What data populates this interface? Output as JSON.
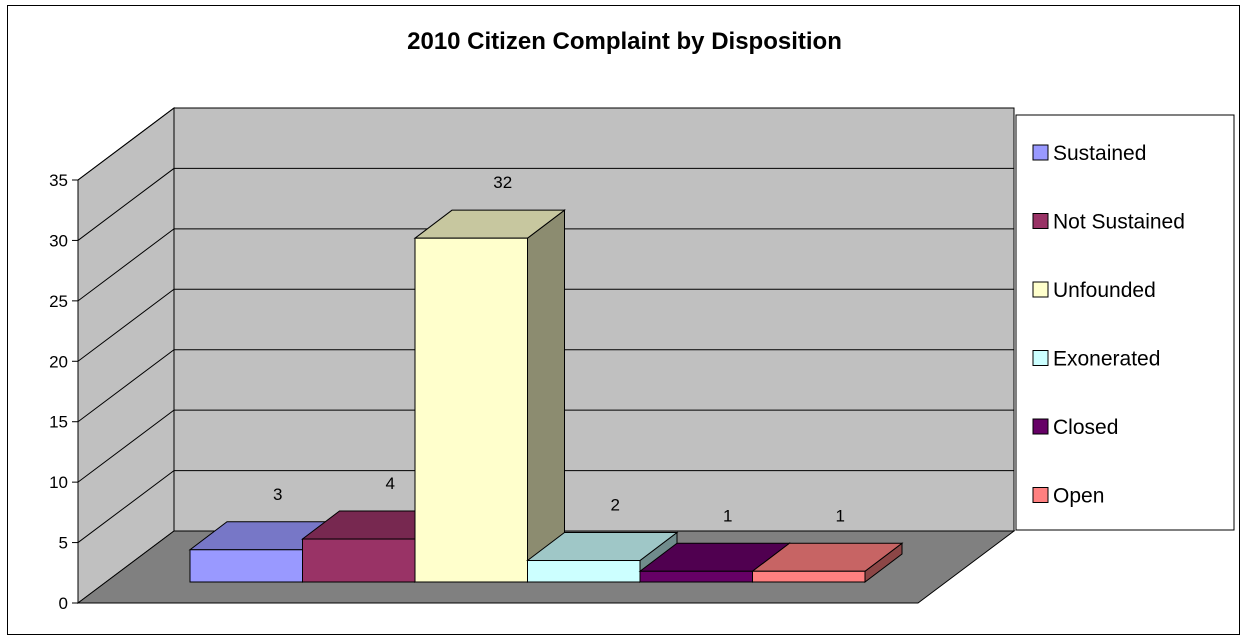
{
  "chart_data": {
    "type": "bar",
    "title": "2010 Citizen Complaint by Disposition",
    "categories": [
      "Sustained",
      "Not Sustained",
      "Unfounded",
      "Exonerated",
      "Closed",
      "Open"
    ],
    "values": [
      3,
      4,
      32,
      2,
      1,
      1
    ],
    "yticks": [
      0,
      5,
      10,
      15,
      20,
      25,
      30,
      35
    ],
    "ylim": [
      0,
      35
    ],
    "grid": true,
    "legend": "right",
    "three_d": true,
    "colors": [
      "#9999FF",
      "#993366",
      "#FFFFCC",
      "#CCFFFF",
      "#660066",
      "#FF8080"
    ],
    "wall_color": "#C0C0C0",
    "floor_color": "#808080"
  }
}
